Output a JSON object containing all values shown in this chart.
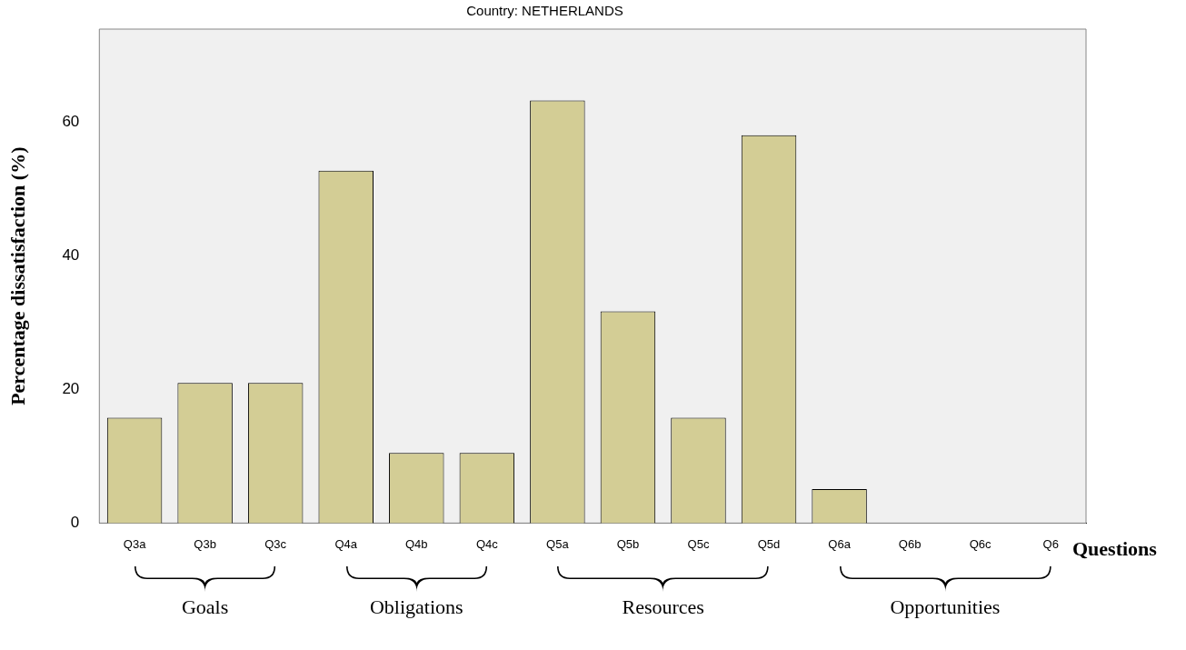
{
  "chart_data": {
    "type": "bar",
    "title": "Country: NETHERLANDS",
    "xlabel": "Questions",
    "ylabel": "Percentage dissatisfaction (%)",
    "categories": [
      "Q3a",
      "Q3b",
      "Q3c",
      "Q4a",
      "Q4b",
      "Q4c",
      "Q5a",
      "Q5b",
      "Q5c",
      "Q5d",
      "Q6a",
      "Q6b",
      "Q6c",
      "Q6"
    ],
    "values": [
      15.8,
      21.0,
      21.0,
      52.8,
      10.5,
      10.5,
      63.3,
      31.7,
      15.8,
      58.1,
      5.1,
      0,
      0,
      0
    ],
    "color": "#d3cd95",
    "ylim": [
      0,
      74
    ],
    "yticks": [
      0,
      20,
      40,
      60
    ],
    "grid": false,
    "annotations": [
      "Goals",
      "Obligations",
      "Resources",
      "Opportunities"
    ]
  }
}
